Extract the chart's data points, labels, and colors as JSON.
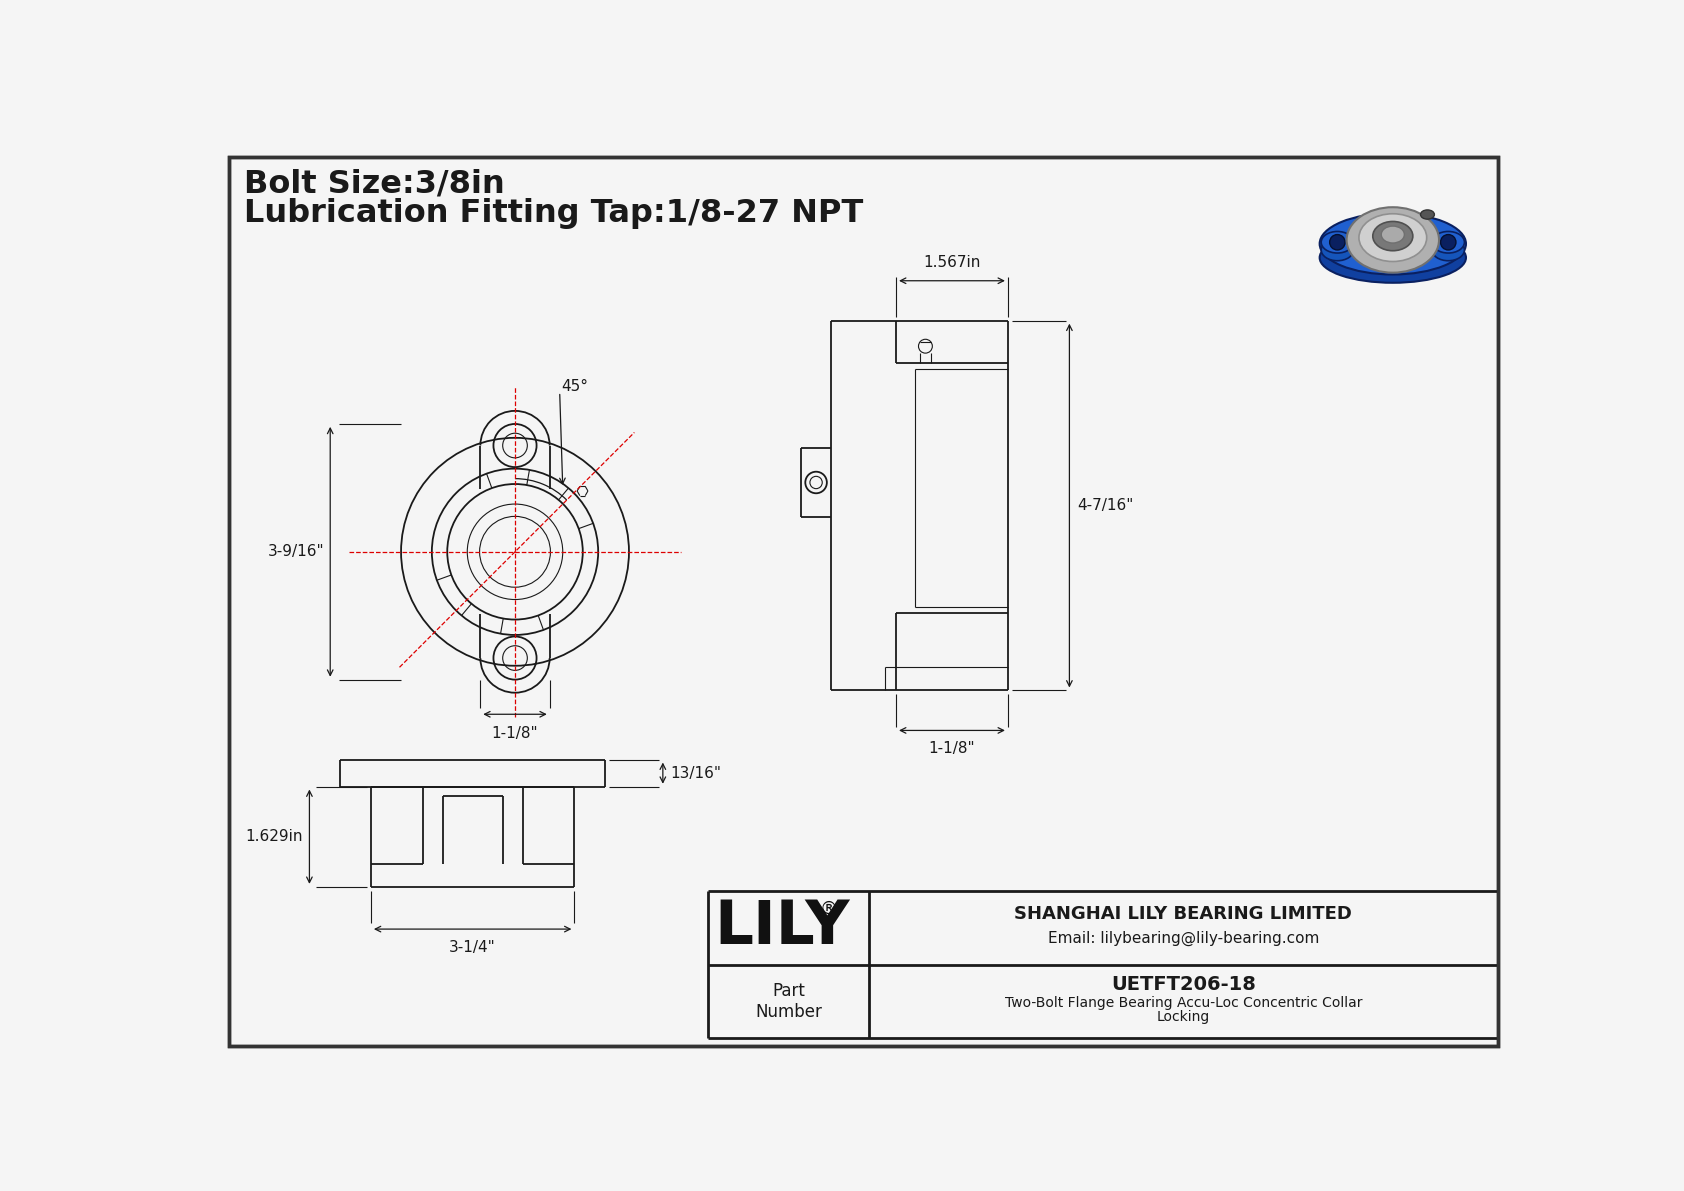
{
  "bg_color": "#f5f5f5",
  "line_color": "#1a1a1a",
  "red_line_color": "#dd0000",
  "title_text1": "Bolt Size:3/8in",
  "title_text2": "Lubrication Fitting Tap:1/8-27 NPT",
  "dim_labels": {
    "top_view_height": "3-9/16\"",
    "top_view_width": "1-1/8\"",
    "top_view_angle": "45°",
    "side_view_width": "1.567in",
    "side_view_height": "4-7/16\"",
    "side_view_bottom": "1-1/8\"",
    "front_view_width": "3-1/4\"",
    "front_view_height": "1.629in",
    "front_view_top": "13/16\""
  },
  "title_block": {
    "company": "SHANGHAI LILY BEARING LIMITED",
    "email": "Email: lilybearing@lily-bearing.com",
    "part_number_label": "Part\nNumber",
    "part_number": "UETFT206-18",
    "description_line1": "Two-Bolt Flange Bearing Accu-Loc Concentric Collar",
    "description_line2": "Locking",
    "brand": "LILY",
    "registered": "®"
  }
}
